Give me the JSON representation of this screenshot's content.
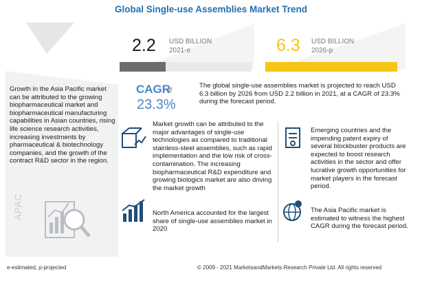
{
  "chart_data": {
    "type": "bar",
    "title": "Global Single-use Assemblies Market Trend",
    "unit": "USD BILLION",
    "categories": [
      "2021-e",
      "2026-p"
    ],
    "values": [
      2.2,
      6.3
    ],
    "value_labels": [
      "2.2",
      "6.3"
    ],
    "colors": [
      "#6d6d6d",
      "#f5c518"
    ],
    "cagr_label": "CAGR",
    "cagr_of": "of",
    "cagr_value": "23.3%",
    "legend": "e-estimated, p-projected"
  },
  "left_panel": {
    "text": "Growth in the Asia Pacific market can be attributed to the growing biopharmaceutical market and biopharmaceutical manufacturing capabilities in Asian countries, rising life science research activities, increasing investments by pharmaceutical & biotechnology companies, and the growth of the contract R&D sector in the region.",
    "region_label": "APAC"
  },
  "summary": "The global single-use assemblies market is projected to reach USD 6.3 billion by 2026 from USD 2.2 billion in 2021, at a CAGR of 23.3% during the forecast period.",
  "insights": [
    {
      "icon": "box-growth-icon",
      "text": "Market growth can be attributed to the major advantages of single-use technologies as compared to traditional stainless-steel assemblies, such as rapid implementation and the low risk of cross-contamination. The increasing biopharmaceutical R&D expenditure and growing biologics market are also driving the market growth"
    },
    {
      "icon": "bar-growth-icon",
      "text": "North America accounted for the largest share of single-use assemblies market in 2020"
    },
    {
      "icon": "document-icon",
      "text": "Emerging countries and the impending patent expiry of several blockbuster products are expected to boost research activities in the sector and offer lucrative growth opportunities for market players in the forecast period."
    },
    {
      "icon": "globe-pin-icon",
      "text": "The Asia Pacific market is estimated to witness the highest CAGR during the forecast period."
    }
  ],
  "footer": {
    "copyright": "© 2009 - 2021 MarketsandMarkets Research Private Ltd. All rights reserved"
  }
}
